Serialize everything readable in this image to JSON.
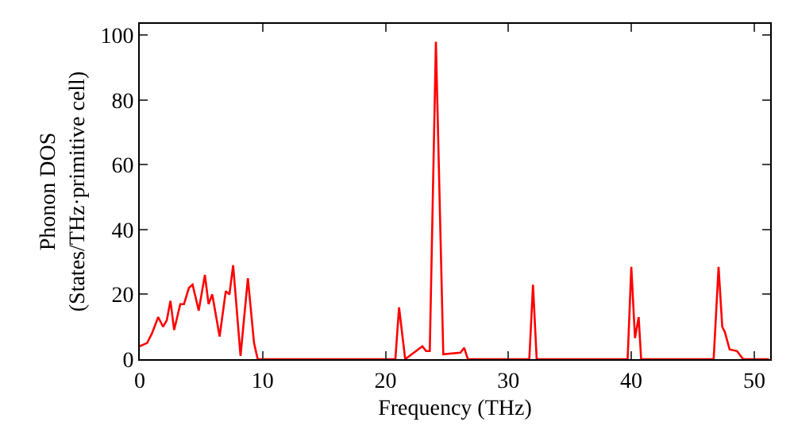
{
  "chart_data": {
    "type": "line",
    "xlabel": "Frequency (THz)",
    "ylabel": "Phonon DOS\n(States/THz·primitive cell)",
    "xlim": [
      0,
      51.3
    ],
    "ylim": [
      0,
      103.5
    ],
    "xticks": [
      0,
      10,
      20,
      30,
      40,
      50
    ],
    "yticks": [
      0,
      20,
      40,
      60,
      80,
      100
    ],
    "grid": false,
    "marker": "none",
    "line_style": "solid",
    "series": [
      {
        "color": "#ff0000",
        "x": [
          0,
          0.6,
          1,
          1.5,
          1.9,
          2.2,
          2.5,
          2.8,
          3.3,
          3.6,
          4,
          4.3,
          4.8,
          5.3,
          5.6,
          5.9,
          6.5,
          7,
          7.3,
          7.6,
          8.2,
          8.8,
          9.3,
          9.6,
          10,
          20.8,
          21.1,
          21.6,
          23,
          23.3,
          23.6,
          24.1,
          24.7,
          26.1,
          26.4,
          26.7,
          31.7,
          32,
          32.3,
          39.7,
          40,
          40.3,
          40.6,
          40.8,
          46.7,
          47.1,
          47.4,
          47.6,
          48,
          48.6,
          49.1,
          51.2
        ],
        "values": [
          4,
          5,
          8,
          13,
          10,
          12,
          18,
          9,
          17,
          17,
          22,
          23,
          15,
          26,
          17,
          20,
          7,
          21,
          20,
          29,
          1,
          25,
          5,
          0,
          0,
          0,
          16,
          0,
          4,
          2.5,
          2.5,
          98,
          1.5,
          2,
          3.5,
          0,
          0,
          23,
          0,
          0,
          28.5,
          6.5,
          13,
          0,
          0,
          28.5,
          10,
          8.5,
          3,
          2.5,
          0,
          0
        ]
      }
    ]
  }
}
